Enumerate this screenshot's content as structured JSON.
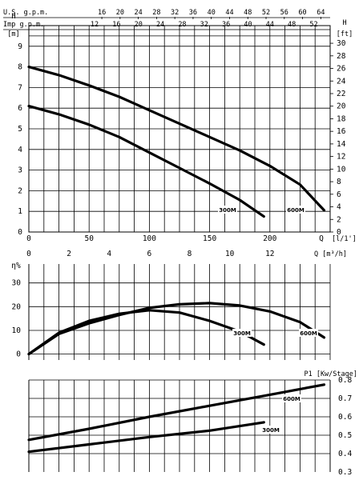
{
  "chart_data": [
    {
      "type": "line",
      "name": "head-curve",
      "top_axis_1": {
        "title": "U.S. g.p.m.",
        "ticks": [
          16,
          20,
          24,
          28,
          32,
          36,
          40,
          44,
          48,
          52,
          56,
          60,
          64
        ]
      },
      "top_axis_2": {
        "title": "Imp g.p.m.",
        "ticks": [
          12,
          16,
          20,
          24,
          28,
          32,
          36,
          40,
          44,
          48,
          52
        ]
      },
      "left_axis": {
        "title": "H",
        "unit": "[m]",
        "ticks": [
          0,
          1,
          2,
          3,
          4,
          5,
          6,
          7,
          8,
          9
        ]
      },
      "right_axis": {
        "title": "H",
        "unit": "[ft]",
        "ticks": [
          0,
          2,
          4,
          6,
          8,
          10,
          12,
          14,
          16,
          18,
          20,
          22,
          24,
          26,
          28,
          30
        ]
      },
      "x_axis_primary": {
        "title": "Q",
        "unit": "[l/1']",
        "ticks": [
          0,
          50,
          100,
          150,
          200
        ]
      },
      "x_axis_secondary": {
        "unit": "Q [m³/h]",
        "ticks": [
          0,
          2,
          4,
          6,
          8,
          10,
          12
        ]
      },
      "xlim": [
        0,
        250
      ],
      "ylim": [
        0,
        9
      ],
      "grid": true,
      "series": [
        {
          "name": "300M",
          "x": [
            0,
            25,
            50,
            75,
            100,
            125,
            150,
            175,
            195
          ],
          "y": [
            6.1,
            5.7,
            5.2,
            4.6,
            3.85,
            3.1,
            2.35,
            1.55,
            0.75
          ]
        },
        {
          "name": "600M",
          "x": [
            0,
            25,
            50,
            75,
            100,
            125,
            150,
            175,
            200,
            225,
            245
          ],
          "y": [
            8.0,
            7.6,
            7.1,
            6.55,
            5.9,
            5.25,
            4.6,
            3.95,
            3.2,
            2.3,
            1.05
          ]
        }
      ]
    },
    {
      "type": "line",
      "name": "efficiency-curve",
      "y_axis": {
        "title": "η%",
        "ticks": [
          0,
          10,
          20,
          30
        ]
      },
      "xlim": [
        0,
        250
      ],
      "ylim": [
        -2.5,
        38
      ],
      "grid": true,
      "series": [
        {
          "name": "300M",
          "x": [
            0,
            25,
            50,
            75,
            100,
            125,
            150,
            175,
            195
          ],
          "y": [
            0,
            9,
            14,
            17,
            18.5,
            17.5,
            14,
            9.5,
            4
          ]
        },
        {
          "name": "600M",
          "x": [
            0,
            25,
            50,
            75,
            100,
            125,
            150,
            175,
            200,
            225,
            245
          ],
          "y": [
            0,
            8.5,
            13,
            16.5,
            19.5,
            21,
            21.5,
            20.5,
            18,
            13.5,
            7
          ]
        }
      ]
    },
    {
      "type": "line",
      "name": "power-curve",
      "y_axis": {
        "title": "P1 [Kw/Stage]",
        "ticks": [
          0.3,
          0.4,
          0.5,
          0.6,
          0.7,
          0.8
        ]
      },
      "xlim": [
        0,
        250
      ],
      "ylim": [
        0.3,
        0.8
      ],
      "grid": true,
      "series": [
        {
          "name": "300M",
          "x": [
            0,
            50,
            100,
            150,
            195
          ],
          "y": [
            0.41,
            0.45,
            0.49,
            0.525,
            0.57
          ]
        },
        {
          "name": "600M",
          "x": [
            0,
            50,
            100,
            150,
            200,
            245
          ],
          "y": [
            0.475,
            0.535,
            0.6,
            0.66,
            0.72,
            0.775
          ]
        }
      ]
    }
  ],
  "labels": {
    "head_300": "300M",
    "head_600": "600M",
    "eff_300": "300M",
    "eff_600": "600M",
    "pow_300": "300M",
    "pow_600": "600M"
  }
}
